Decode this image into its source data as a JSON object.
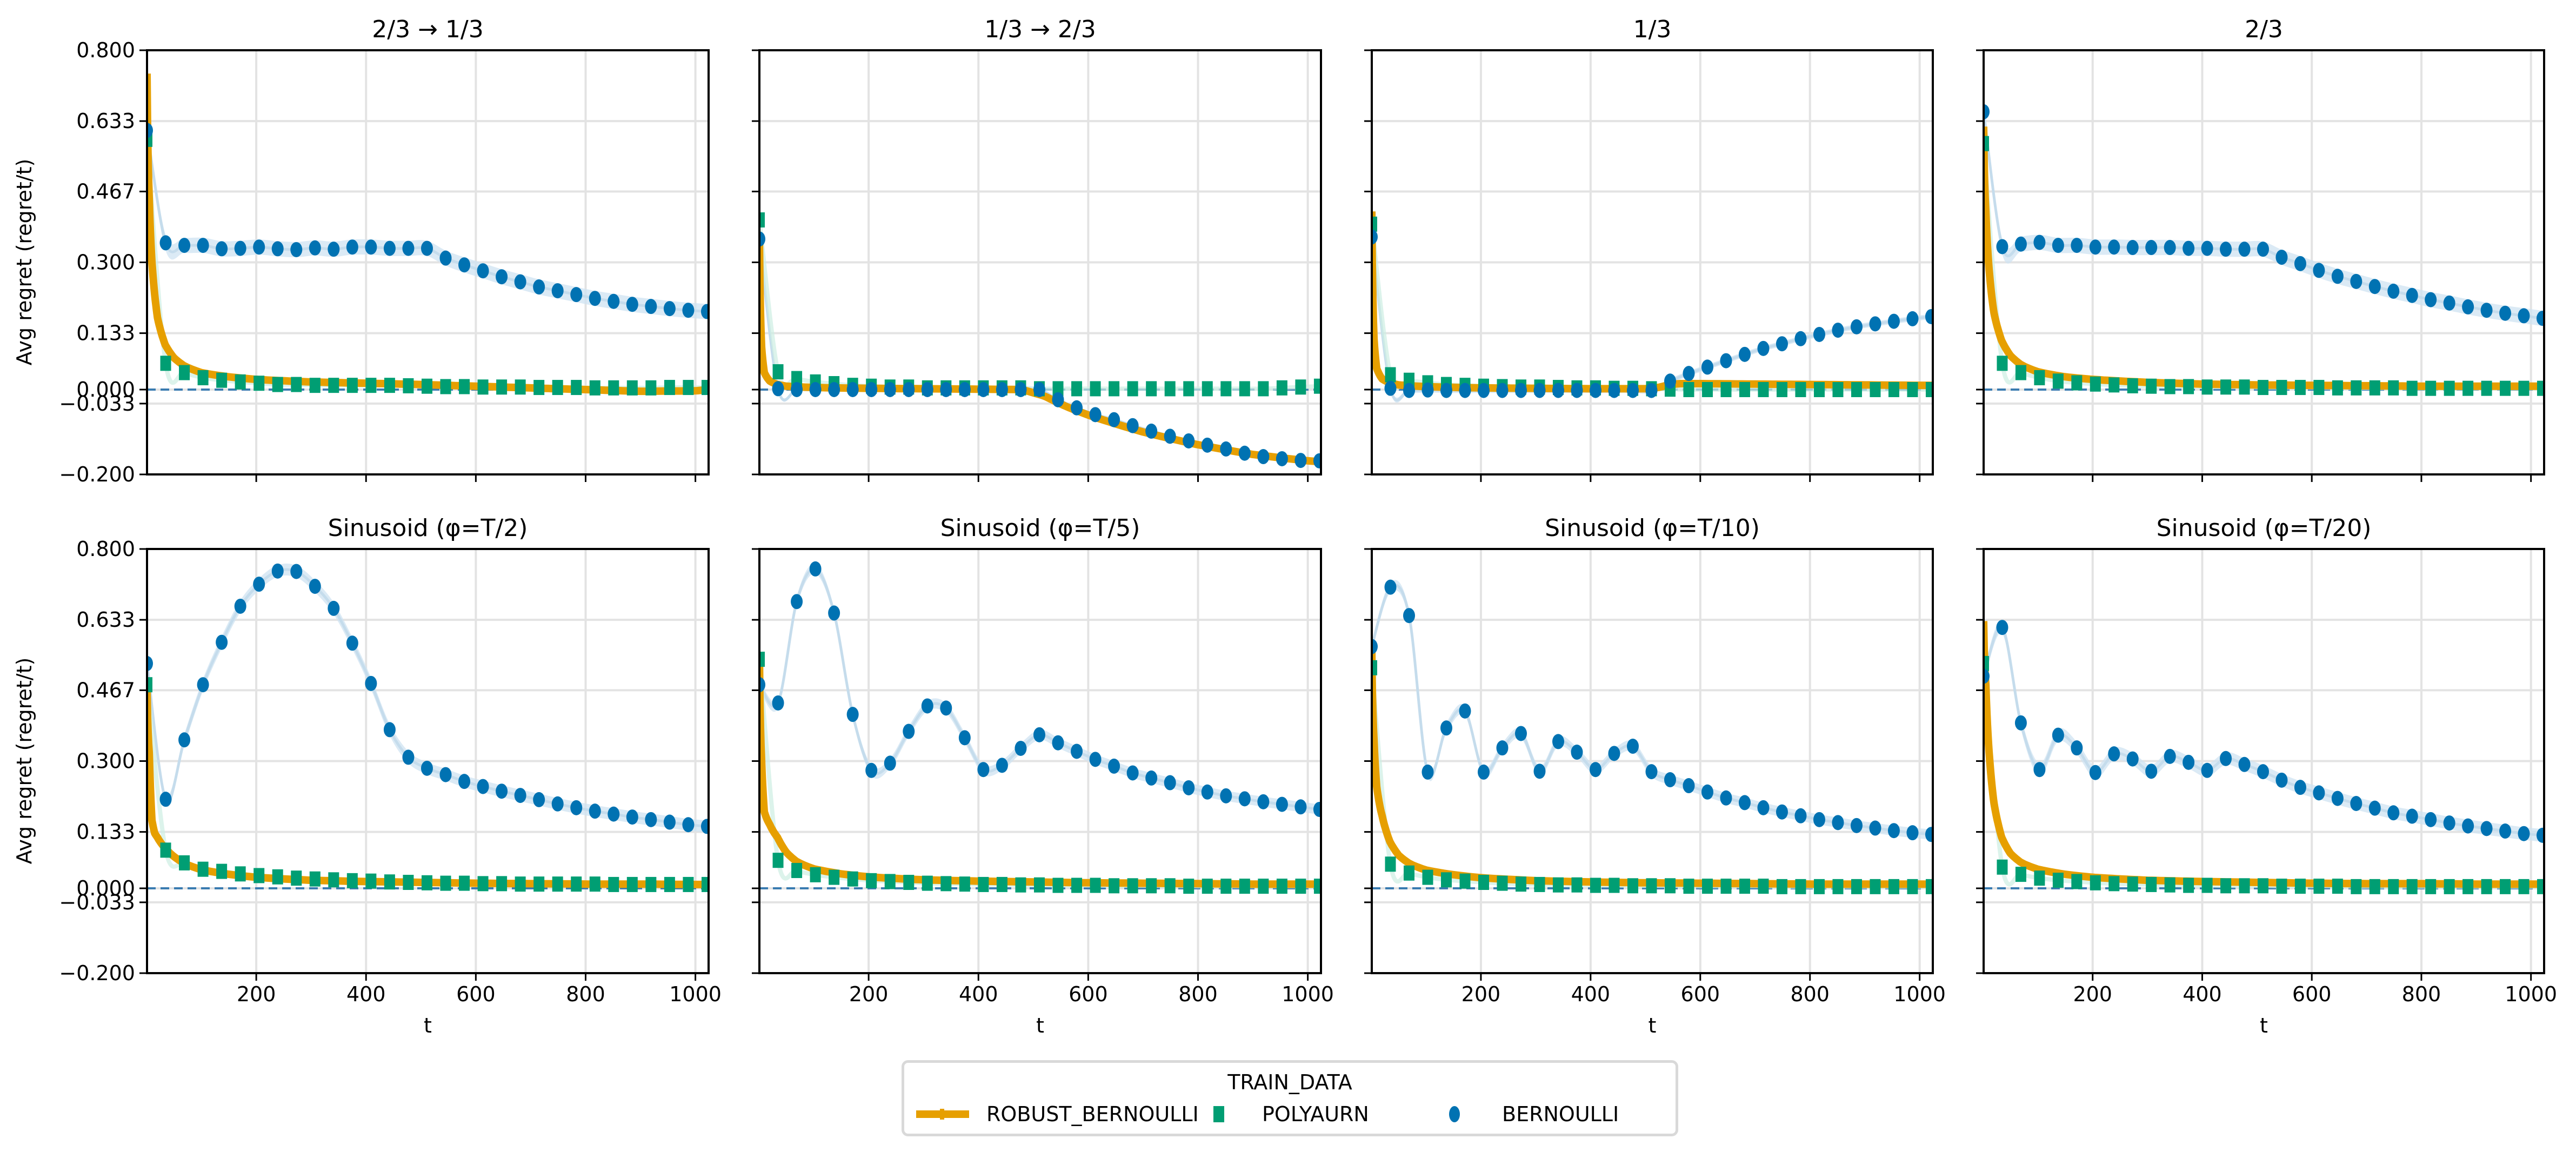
{
  "chart_data": {
    "type": "line",
    "layout": "2x4 grid of subplots, shared y-axis, shared x-axis per column",
    "ylabel": "Avg regret (regret/t)",
    "xlabel": "t",
    "ylim": [
      -0.2,
      0.8
    ],
    "xlim": [
      1,
      1024
    ],
    "yticks": [
      "0.800",
      "0.633",
      "0.467",
      "0.300",
      "0.133",
      "0.000",
      "−0.033",
      "−0.200"
    ],
    "ytick_values": [
      0.8,
      0.633,
      0.467,
      0.3,
      0.133,
      0.0,
      -0.033,
      -0.2
    ],
    "xticks": [
      "200",
      "400",
      "600",
      "800",
      "1000"
    ],
    "xtick_values": [
      200,
      400,
      600,
      800,
      1000
    ],
    "grid": true,
    "reference_line": {
      "y": 0.0,
      "style": "dashed",
      "color": "#3a7bb0"
    },
    "legend": {
      "title": "TRAIN_DATA",
      "placement": "bottom-center",
      "entries": [
        {
          "label": "ROBUST_BERNOULLI",
          "marker": "thick line",
          "color": "#E69F00"
        },
        {
          "label": "POLYAURN",
          "marker": "square",
          "color": "#009E73"
        },
        {
          "label": "BERNOULLI",
          "marker": "circle",
          "color": "#0072B2"
        }
      ]
    },
    "marker_t": [
      1,
      35,
      69,
      103,
      137,
      171,
      205,
      239,
      273,
      307,
      341,
      375,
      409,
      443,
      477,
      511,
      545,
      579,
      613,
      647,
      681,
      715,
      749,
      783,
      817,
      851,
      885,
      919,
      953,
      987,
      1021
    ],
    "panels": [
      {
        "title": "2/3 → 1/3",
        "robust_bernoulli": {
          "t": [
            1,
            5,
            10,
            20,
            34,
            50,
            70,
            100,
            150,
            200,
            300,
            400,
            500,
            600,
            700,
            800,
            900,
            1000,
            1024
          ],
          "y": [
            0.745,
            0.45,
            0.3,
            0.17,
            0.106,
            0.075,
            0.055,
            0.04,
            0.03,
            0.024,
            0.018,
            0.015,
            0.012,
            0.008,
            0.004,
            0.0,
            -0.004,
            -0.003,
            0.0
          ]
        },
        "polyaurn": [
          0.59,
          0.062,
          0.04,
          0.028,
          0.022,
          0.018,
          0.015,
          0.012,
          0.012,
          0.01,
          0.01,
          0.01,
          0.01,
          0.01,
          0.009,
          0.008,
          0.007,
          0.007,
          0.006,
          0.006,
          0.006,
          0.005,
          0.005,
          0.005,
          0.004,
          0.004,
          0.004,
          0.004,
          0.005,
          0.005,
          0.005
        ],
        "bernoulli": [
          0.611,
          0.346,
          0.34,
          0.34,
          0.332,
          0.333,
          0.336,
          0.332,
          0.33,
          0.334,
          0.331,
          0.336,
          0.336,
          0.333,
          0.333,
          0.333,
          0.31,
          0.294,
          0.28,
          0.266,
          0.254,
          0.242,
          0.233,
          0.224,
          0.215,
          0.208,
          0.201,
          0.196,
          0.191,
          0.187,
          0.184
        ],
        "bernoulli_band": 0.018
      },
      {
        "title": "1/3 → 2/3",
        "robust_bernoulli": {
          "t": [
            1,
            5,
            10,
            20,
            34,
            50,
            100,
            200,
            300,
            400,
            480,
            520,
            560,
            600,
            700,
            800,
            900,
            1000,
            1024
          ],
          "y": [
            0.36,
            0.1,
            0.04,
            0.02,
            0.012,
            0.008,
            0.005,
            0.003,
            0.002,
            0.001,
            0.0,
            -0.015,
            -0.04,
            -0.06,
            -0.1,
            -0.13,
            -0.153,
            -0.168,
            -0.17
          ]
        },
        "polyaurn": [
          0.4,
          0.042,
          0.026,
          0.018,
          0.014,
          0.01,
          0.008,
          0.006,
          0.006,
          0.004,
          0.004,
          0.004,
          0.004,
          0.004,
          0.004,
          0.002,
          0.002,
          0.002,
          0.002,
          0.002,
          0.002,
          0.002,
          0.002,
          0.002,
          0.002,
          0.002,
          0.002,
          0.002,
          0.004,
          0.006,
          0.008
        ],
        "bernoulli": [
          0.355,
          0.002,
          0.0,
          0.0,
          0.0,
          0.0,
          0.0,
          0.0,
          0.0,
          0.0,
          0.0,
          0.0,
          0.0,
          0.0,
          0.0,
          0.0,
          -0.024,
          -0.043,
          -0.059,
          -0.071,
          -0.085,
          -0.098,
          -0.11,
          -0.121,
          -0.131,
          -0.14,
          -0.15,
          -0.158,
          -0.163,
          -0.167,
          -0.168
        ],
        "bernoulli_band": 0.004
      },
      {
        "title": "1/3",
        "robust_bernoulli": {
          "t": [
            1,
            5,
            10,
            20,
            34,
            50,
            100,
            200,
            300,
            400,
            500,
            520,
            540,
            560,
            600,
            700,
            800,
            900,
            1000,
            1024
          ],
          "y": [
            0.42,
            0.12,
            0.05,
            0.025,
            0.016,
            0.011,
            0.007,
            0.004,
            0.003,
            0.002,
            0.002,
            0.004,
            0.01,
            0.014,
            0.014,
            0.013,
            0.012,
            0.011,
            0.01,
            0.01
          ]
        },
        "polyaurn": [
          0.39,
          0.035,
          0.022,
          0.016,
          0.012,
          0.01,
          0.008,
          0.007,
          0.006,
          0.006,
          0.005,
          0.004,
          0.004,
          0.003,
          0.003,
          0.002,
          0.001,
          0.0,
          0.0,
          0.0,
          0.0,
          0.0,
          0.0,
          0.0,
          0.0,
          0.0,
          0.0,
          0.0,
          0.0,
          0.0,
          0.0
        ],
        "bernoulli": [
          0.36,
          0.003,
          -0.002,
          -0.001,
          -0.002,
          -0.002,
          -0.002,
          -0.002,
          -0.002,
          -0.002,
          -0.002,
          -0.002,
          -0.002,
          -0.002,
          -0.002,
          -0.002,
          0.02,
          0.038,
          0.053,
          0.068,
          0.083,
          0.097,
          0.108,
          0.12,
          0.13,
          0.14,
          0.148,
          0.155,
          0.161,
          0.167,
          0.172
        ],
        "bernoulli_band": 0.006
      },
      {
        "title": "2/3",
        "robust_bernoulli": {
          "t": [
            1,
            5,
            10,
            20,
            34,
            50,
            70,
            100,
            150,
            200,
            300,
            400,
            500,
            600,
            700,
            800,
            900,
            1000,
            1024
          ],
          "y": [
            0.62,
            0.42,
            0.3,
            0.18,
            0.115,
            0.08,
            0.058,
            0.042,
            0.03,
            0.024,
            0.017,
            0.013,
            0.011,
            0.01,
            0.009,
            0.008,
            0.008,
            0.008,
            0.008
          ]
        },
        "polyaurn": [
          0.58,
          0.062,
          0.04,
          0.028,
          0.02,
          0.016,
          0.013,
          0.011,
          0.009,
          0.008,
          0.007,
          0.007,
          0.006,
          0.006,
          0.006,
          0.005,
          0.005,
          0.005,
          0.005,
          0.004,
          0.004,
          0.004,
          0.004,
          0.003,
          0.003,
          0.003,
          0.003,
          0.003,
          0.003,
          0.003,
          0.003
        ],
        "bernoulli": [
          0.655,
          0.337,
          0.343,
          0.347,
          0.34,
          0.34,
          0.336,
          0.336,
          0.335,
          0.335,
          0.335,
          0.333,
          0.333,
          0.331,
          0.331,
          0.331,
          0.312,
          0.297,
          0.281,
          0.267,
          0.255,
          0.243,
          0.232,
          0.222,
          0.212,
          0.204,
          0.195,
          0.187,
          0.18,
          0.174,
          0.168
        ],
        "bernoulli_band": 0.018
      },
      {
        "title": "Sinusoid (φ=T/2)",
        "robust_bernoulli": {
          "t": [
            1,
            5,
            10,
            15,
            20,
            34,
            50,
            70,
            100,
            150,
            200,
            300,
            400,
            500,
            600,
            700,
            800,
            900,
            1000,
            1024
          ],
          "y": [
            0.47,
            0.32,
            0.16,
            0.13,
            0.12,
            0.095,
            0.075,
            0.058,
            0.044,
            0.033,
            0.026,
            0.019,
            0.016,
            0.014,
            0.012,
            0.011,
            0.01,
            0.01,
            0.009,
            0.009
          ]
        },
        "polyaurn": [
          0.48,
          0.09,
          0.06,
          0.045,
          0.04,
          0.034,
          0.03,
          0.027,
          0.024,
          0.022,
          0.02,
          0.018,
          0.017,
          0.015,
          0.014,
          0.013,
          0.012,
          0.012,
          0.011,
          0.011,
          0.01,
          0.01,
          0.01,
          0.01,
          0.01,
          0.009,
          0.009,
          0.009,
          0.009,
          0.009,
          0.009
        ],
        "bernoulli": [
          0.53,
          0.21,
          0.35,
          0.48,
          0.58,
          0.665,
          0.717,
          0.748,
          0.747,
          0.712,
          0.66,
          0.578,
          0.483,
          0.374,
          0.309,
          0.283,
          0.268,
          0.252,
          0.24,
          0.229,
          0.219,
          0.209,
          0.199,
          0.19,
          0.182,
          0.175,
          0.168,
          0.162,
          0.156,
          0.15,
          0.146
        ],
        "bernoulli_band": 0.014
      },
      {
        "title": "Sinusoid (φ=T/5)",
        "robust_bernoulli": {
          "t": [
            1,
            5,
            10,
            20,
            34,
            50,
            70,
            100,
            150,
            200,
            300,
            400,
            500,
            600,
            700,
            800,
            900,
            1000,
            1024
          ],
          "y": [
            0.55,
            0.3,
            0.18,
            0.15,
            0.12,
            0.085,
            0.062,
            0.046,
            0.034,
            0.027,
            0.02,
            0.017,
            0.015,
            0.013,
            0.012,
            0.011,
            0.01,
            0.01,
            0.01
          ]
        },
        "polyaurn": [
          0.54,
          0.066,
          0.042,
          0.032,
          0.026,
          0.022,
          0.018,
          0.016,
          0.014,
          0.012,
          0.011,
          0.01,
          0.009,
          0.009,
          0.008,
          0.008,
          0.007,
          0.007,
          0.007,
          0.006,
          0.006,
          0.006,
          0.006,
          0.005,
          0.005,
          0.005,
          0.005,
          0.005,
          0.005,
          0.005,
          0.005
        ],
        "bernoulli": [
          0.48,
          0.437,
          0.676,
          0.753,
          0.649,
          0.41,
          0.278,
          0.295,
          0.37,
          0.43,
          0.425,
          0.355,
          0.28,
          0.29,
          0.33,
          0.362,
          0.343,
          0.323,
          0.304,
          0.288,
          0.272,
          0.26,
          0.249,
          0.237,
          0.227,
          0.218,
          0.211,
          0.204,
          0.198,
          0.192,
          0.186
        ],
        "bernoulli_band": 0.012
      },
      {
        "title": "Sinusoid (φ=T/10)",
        "robust_bernoulli": {
          "t": [
            1,
            5,
            10,
            20,
            34,
            50,
            70,
            100,
            150,
            200,
            300,
            400,
            500,
            600,
            700,
            800,
            900,
            1000,
            1024
          ],
          "y": [
            0.56,
            0.35,
            0.24,
            0.17,
            0.11,
            0.078,
            0.058,
            0.043,
            0.032,
            0.025,
            0.018,
            0.015,
            0.013,
            0.012,
            0.011,
            0.01,
            0.01,
            0.01,
            0.01
          ]
        },
        "polyaurn": [
          0.52,
          0.057,
          0.036,
          0.026,
          0.02,
          0.017,
          0.014,
          0.012,
          0.01,
          0.009,
          0.008,
          0.008,
          0.007,
          0.007,
          0.006,
          0.006,
          0.006,
          0.005,
          0.005,
          0.005,
          0.005,
          0.005,
          0.004,
          0.004,
          0.004,
          0.004,
          0.004,
          0.004,
          0.004,
          0.004,
          0.004
        ],
        "bernoulli": [
          0.57,
          0.71,
          0.643,
          0.274,
          0.378,
          0.418,
          0.274,
          0.331,
          0.365,
          0.276,
          0.346,
          0.321,
          0.28,
          0.318,
          0.335,
          0.275,
          0.256,
          0.242,
          0.227,
          0.213,
          0.202,
          0.19,
          0.18,
          0.171,
          0.162,
          0.155,
          0.148,
          0.142,
          0.136,
          0.131,
          0.127
        ],
        "bernoulli_band": 0.012
      },
      {
        "title": "Sinusoid (φ=T/20)",
        "robust_bernoulli": {
          "t": [
            1,
            5,
            10,
            20,
            34,
            50,
            70,
            100,
            150,
            200,
            300,
            400,
            500,
            600,
            700,
            800,
            900,
            1000,
            1024
          ],
          "y": [
            0.63,
            0.48,
            0.34,
            0.2,
            0.12,
            0.082,
            0.06,
            0.045,
            0.033,
            0.026,
            0.019,
            0.016,
            0.014,
            0.012,
            0.011,
            0.011,
            0.01,
            0.01,
            0.01
          ]
        },
        "polyaurn": [
          0.53,
          0.05,
          0.033,
          0.024,
          0.019,
          0.016,
          0.013,
          0.011,
          0.01,
          0.009,
          0.008,
          0.007,
          0.007,
          0.006,
          0.006,
          0.006,
          0.005,
          0.005,
          0.005,
          0.005,
          0.004,
          0.004,
          0.004,
          0.004,
          0.004,
          0.004,
          0.004,
          0.004,
          0.004,
          0.004,
          0.004
        ],
        "bernoulli": [
          0.5,
          0.615,
          0.39,
          0.28,
          0.361,
          0.331,
          0.273,
          0.317,
          0.305,
          0.276,
          0.311,
          0.297,
          0.278,
          0.306,
          0.292,
          0.275,
          0.255,
          0.238,
          0.225,
          0.212,
          0.2,
          0.189,
          0.178,
          0.17,
          0.162,
          0.154,
          0.147,
          0.141,
          0.135,
          0.129,
          0.125
        ],
        "bernoulli_band": 0.015
      }
    ]
  }
}
